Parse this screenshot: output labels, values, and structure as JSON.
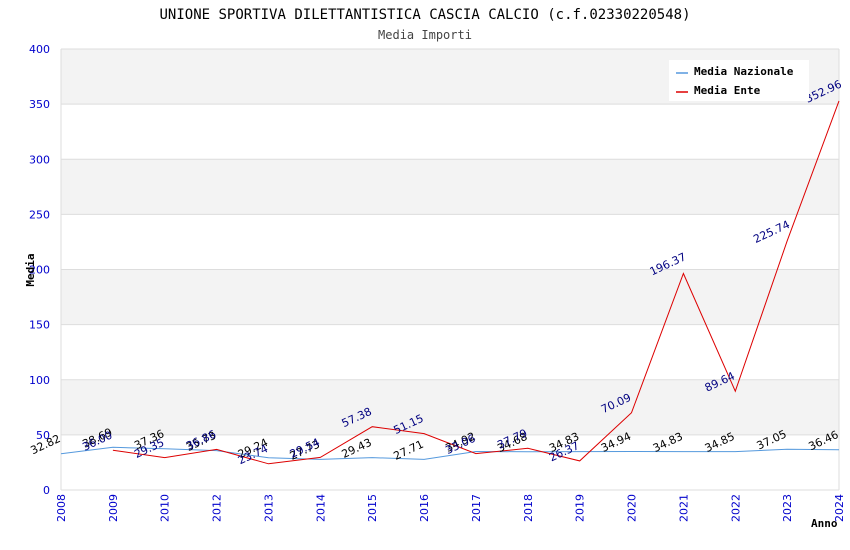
{
  "chart_data": {
    "type": "line",
    "title": "UNIONE SPORTIVA DILETTANTISTICA CASCIA CALCIO (c.f.02330220548)",
    "subtitle": "Media Importi",
    "xlabel": "Anno",
    "ylabel": "Media",
    "ylim": [
      0,
      400
    ],
    "yticks": [
      "0",
      "50",
      "100",
      "150",
      "200",
      "250",
      "300",
      "350",
      "400"
    ],
    "categories": [
      "2008",
      "2009",
      "2010",
      "2012",
      "2013",
      "2014",
      "2015",
      "2016",
      "2017",
      "2018",
      "2019",
      "2020",
      "2021",
      "2022",
      "2023",
      "2024"
    ],
    "legend_position": "top-right",
    "grid": true,
    "series": [
      {
        "name": "Media Nazionale",
        "color": "#5599dd",
        "label_color": "#000000",
        "values": [
          32.82,
          38.69,
          37.36,
          35.73,
          29.24,
          27.73,
          29.43,
          27.71,
          34.92,
          34.68,
          34.83,
          34.94,
          34.83,
          34.85,
          37.05,
          36.46
        ],
        "labels": [
          "32.82",
          "38.69",
          "37.36",
          "35.73",
          "29.24",
          "27.73",
          "29.43",
          "27.71",
          "34.92",
          "34.68",
          "34.83",
          "34.94",
          "34.83",
          "34.85",
          "37.05",
          "36.46"
        ]
      },
      {
        "name": "Media Ente",
        "color": "#dd0000",
        "label_color": "#000080",
        "values": [
          null,
          36.0,
          29.35,
          36.86,
          23.74,
          29.54,
          57.38,
          51.15,
          33.06,
          37.79,
          26.37,
          70.09,
          196.37,
          89.64,
          225.74,
          352.96
        ],
        "labels": [
          "",
          "36.00",
          "29.35",
          "36.86",
          "23.74",
          "29.54",
          "57.38",
          "51.15",
          "33.06",
          "37.79",
          "26.37",
          "70.09",
          "196.37",
          "89.64",
          "225.74",
          "352.96"
        ]
      }
    ]
  }
}
